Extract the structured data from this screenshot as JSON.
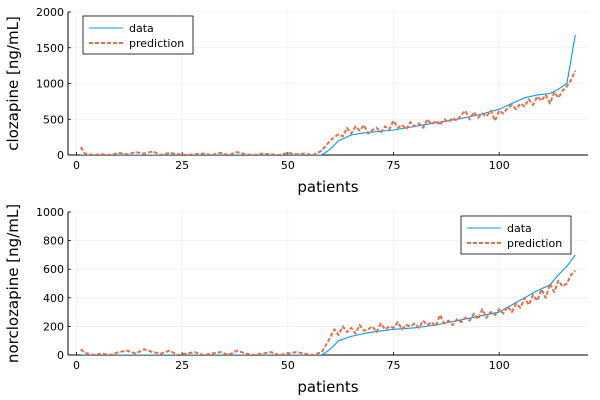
{
  "colors": {
    "data": "#009AFA",
    "prediction": "#E26F46",
    "grid": "#ebebeb"
  },
  "chart_data": [
    {
      "type": "line",
      "title": "",
      "xlabel": "patients",
      "ylabel": "clozapine [ng/mL]",
      "xlim": [
        -2,
        121
      ],
      "ylim": [
        0,
        2000
      ],
      "xticks": [
        0,
        25,
        50,
        75,
        100
      ],
      "yticks": [
        0,
        500,
        1000,
        1500,
        2000
      ],
      "grid": true,
      "legend": "top-left",
      "series": [
        {
          "name": "data",
          "style": "solid",
          "x": [
            1,
            10,
            20,
            30,
            40,
            50,
            58,
            60,
            62,
            65,
            68,
            70,
            75,
            80,
            85,
            90,
            95,
            100,
            103,
            106,
            109,
            112,
            114,
            116,
            118
          ],
          "values": [
            0,
            0,
            0,
            0,
            0,
            0,
            0,
            80,
            200,
            280,
            310,
            320,
            350,
            400,
            450,
            500,
            560,
            640,
            720,
            800,
            840,
            860,
            920,
            1000,
            1680
          ]
        },
        {
          "name": "prediction",
          "style": "dashed",
          "x": [
            1,
            2,
            4,
            6,
            8,
            10,
            12,
            14,
            16,
            18,
            20,
            22,
            24,
            26,
            28,
            30,
            32,
            34,
            36,
            38,
            40,
            42,
            44,
            46,
            48,
            50,
            52,
            54,
            56,
            58,
            60,
            61,
            62,
            63,
            64,
            65,
            66,
            67,
            68,
            69,
            70,
            71,
            72,
            73,
            74,
            75,
            76,
            77,
            78,
            79,
            80,
            81,
            82,
            83,
            84,
            85,
            86,
            87,
            88,
            89,
            90,
            91,
            92,
            93,
            94,
            95,
            96,
            97,
            98,
            99,
            100,
            101,
            102,
            103,
            104,
            105,
            106,
            107,
            108,
            109,
            110,
            111,
            112,
            113,
            114,
            115,
            116,
            117,
            118
          ],
          "values": [
            110,
            20,
            0,
            10,
            0,
            30,
            10,
            40,
            20,
            50,
            0,
            30,
            10,
            0,
            10,
            20,
            0,
            30,
            0,
            40,
            10,
            0,
            20,
            10,
            0,
            30,
            10,
            20,
            0,
            60,
            200,
            250,
            290,
            260,
            380,
            300,
            400,
            340,
            420,
            300,
            350,
            380,
            320,
            400,
            360,
            480,
            380,
            420,
            360,
            460,
            400,
            440,
            380,
            500,
            430,
            480,
            420,
            500,
            460,
            520,
            480,
            560,
            620,
            500,
            600,
            520,
            580,
            540,
            620,
            480,
            620,
            580,
            660,
            700,
            640,
            720,
            680,
            780,
            700,
            820,
            760,
            840,
            720,
            880,
            800,
            900,
            960,
            1050,
            1180
          ]
        }
      ]
    },
    {
      "type": "line",
      "title": "",
      "xlabel": "patients",
      "ylabel": "norclozapine [ng/mL]",
      "xlim": [
        -2,
        121
      ],
      "ylim": [
        0,
        1000
      ],
      "xticks": [
        0,
        25,
        50,
        75,
        100
      ],
      "yticks": [
        0,
        200,
        400,
        600,
        800,
        1000
      ],
      "grid": true,
      "legend": "top-right",
      "series": [
        {
          "name": "data",
          "style": "solid",
          "x": [
            1,
            10,
            20,
            30,
            40,
            50,
            58,
            60,
            62,
            65,
            68,
            70,
            75,
            80,
            85,
            90,
            95,
            100,
            103,
            106,
            109,
            112,
            114,
            116,
            118
          ],
          "values": [
            0,
            0,
            0,
            0,
            0,
            0,
            0,
            40,
            100,
            130,
            150,
            160,
            180,
            190,
            210,
            240,
            270,
            300,
            350,
            400,
            450,
            490,
            560,
            620,
            700
          ]
        },
        {
          "name": "prediction",
          "style": "dashed",
          "x": [
            1,
            2,
            4,
            6,
            8,
            10,
            12,
            14,
            16,
            18,
            20,
            22,
            24,
            26,
            28,
            30,
            32,
            34,
            36,
            38,
            40,
            42,
            44,
            46,
            48,
            50,
            52,
            54,
            56,
            58,
            60,
            61,
            62,
            63,
            64,
            65,
            66,
            67,
            68,
            69,
            70,
            71,
            72,
            73,
            74,
            75,
            76,
            77,
            78,
            79,
            80,
            81,
            82,
            83,
            84,
            85,
            86,
            87,
            88,
            89,
            90,
            91,
            92,
            93,
            94,
            95,
            96,
            97,
            98,
            99,
            100,
            101,
            102,
            103,
            104,
            105,
            106,
            107,
            108,
            109,
            110,
            111,
            112,
            113,
            114,
            115,
            116,
            117,
            118
          ],
          "values": [
            40,
            15,
            0,
            10,
            0,
            20,
            30,
            10,
            40,
            20,
            10,
            30,
            0,
            10,
            20,
            0,
            10,
            20,
            0,
            30,
            10,
            0,
            10,
            20,
            0,
            10,
            20,
            10,
            0,
            20,
            120,
            180,
            140,
            200,
            160,
            190,
            150,
            210,
            170,
            180,
            200,
            160,
            220,
            180,
            200,
            190,
            230,
            180,
            210,
            200,
            220,
            190,
            240,
            210,
            230,
            200,
            280,
            220,
            240,
            210,
            250,
            230,
            260,
            240,
            290,
            250,
            320,
            260,
            300,
            280,
            320,
            290,
            340,
            300,
            360,
            330,
            400,
            350,
            420,
            380,
            460,
            400,
            500,
            440,
            520,
            480,
            500,
            560,
            590
          ]
        }
      ]
    }
  ]
}
